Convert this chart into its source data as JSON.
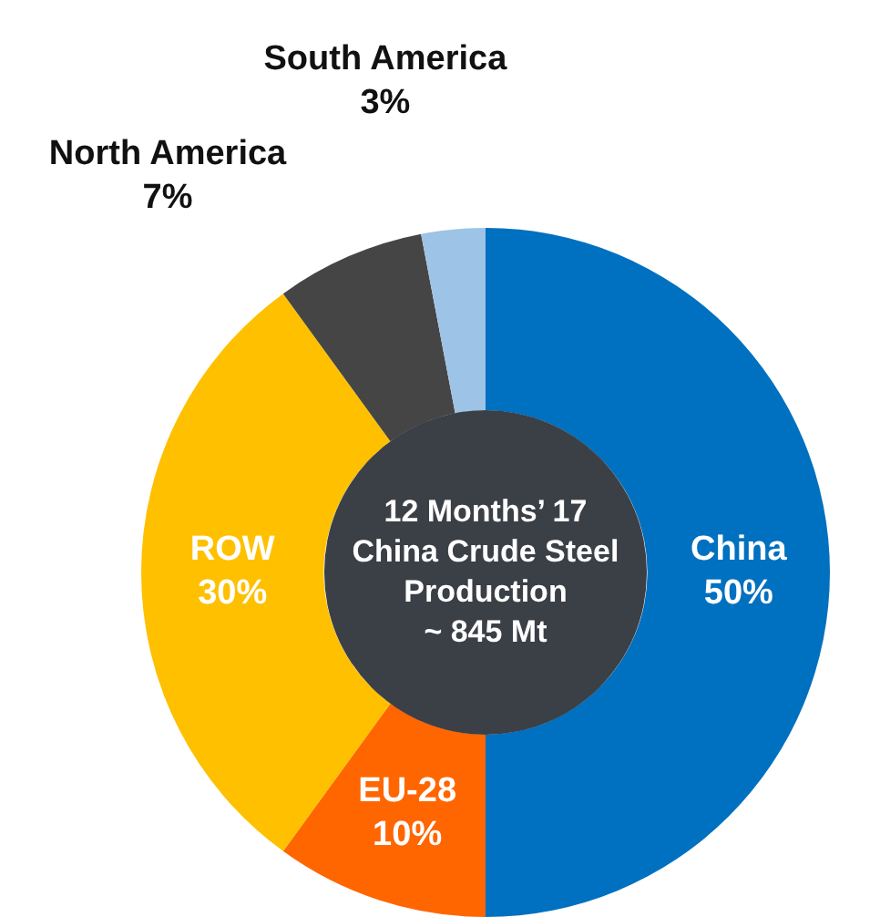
{
  "chart_data": {
    "type": "donut",
    "title": "12 Months’ 17\nChina Crude Steel\nProduction\n~ 845 Mt",
    "categories": [
      "China",
      "EU-28",
      "ROW",
      "North America",
      "South America"
    ],
    "values": [
      50,
      10,
      30,
      7,
      3
    ],
    "value_labels": [
      "50%",
      "10%",
      "30%",
      "7%",
      "3%"
    ],
    "colors": [
      "#0070c0",
      "#ff6600",
      "#ffc000",
      "#454545",
      "#9dc3e6"
    ],
    "legend": false
  }
}
